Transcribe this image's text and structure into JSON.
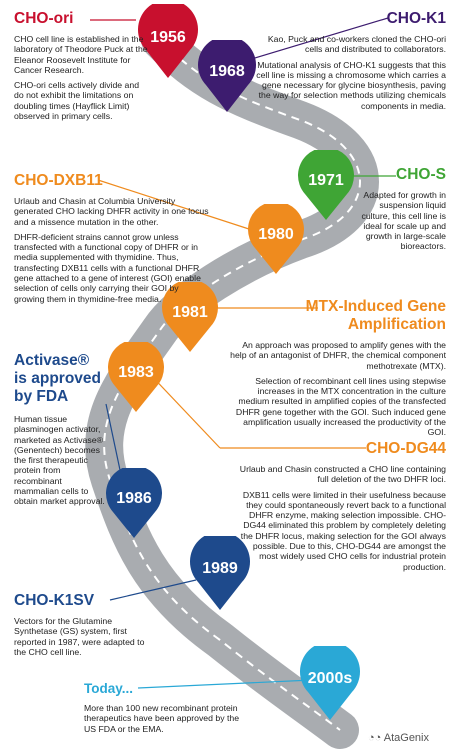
{
  "colors": {
    "red": "#c8102e",
    "purple": "#3d1c6f",
    "green": "#3fa535",
    "orange": "#ef8b1e",
    "navy": "#1e4a8c",
    "light_blue": "#2aa8d6",
    "road": "#a9acb0"
  },
  "milestones": {
    "y1956": "1956",
    "y1968": "1968",
    "y1971": "1971",
    "y1980": "1980",
    "y1981": "1981",
    "y1983": "1983",
    "y1986": "1986",
    "y1989": "1989",
    "y2000s": "2000s"
  },
  "cho_ori": {
    "title": "CHO-ori",
    "p1": "CHO cell line is established in the laboratory of Theodore Puck at the Eleanor Roosevelt Institute for Cancer Research.",
    "p2": "CHO-ori cells actively divide and do not exhibit the limitations on doubling times (Hayflick Limit) observed in primary cells."
  },
  "cho_k1": {
    "title": "CHO-K1",
    "p1": "Kao, Puck and co-workers cloned the CHO-ori cells and distributed to collaborators.",
    "p2": "Mutational analysis of CHO-K1 suggests that this cell line is missing a chromosome which carries a gene necessary for glycine biosynthesis, paving the way for selection methods utilizing chemicals components in media."
  },
  "cho_s": {
    "title": "CHO-S",
    "p1": "Adapted for growth in suspension liquid culture, this cell line is ideal for scale up and growth in large-scale bioreactors."
  },
  "cho_dxb11": {
    "title": "CHO-DXB11",
    "p1": "Urlaub and Chasin at Columbia University generated CHO lacking DHFR activity in one locus and a missence mutation in the other.",
    "p2": "DHFR-deficient strains cannot grow unless transfected with a functional copy of DHFR or in media supplemented with thymidine. Thus, transfecting DXB11 cells with a functional DHFR gene attached to a gene of interest (GOI) enable selection of cells only carrying their GOI by growing them in thymidine-free media."
  },
  "mtx": {
    "title_line1": "MTX-Induced Gene",
    "title_line2": "Amplification",
    "p1": "An approach was proposed to amplify genes with the help of an antagonist of DHFR, the chemical component methotrexate (MTX).",
    "p2": "Selection of recombinant cell lines using stepwise increases in the MTX concentration in the culture medium resulted in amplified copies of the transfected DHFR gene together with the GOI. Such induced gene amplification usually increased the productivity of the GOI."
  },
  "activase": {
    "title_line1": "Activase®",
    "title_line2": "is approved",
    "title_line3": "by FDA",
    "p1": "Human tissue plasminogen activator, marketed as Activase® (Genentech) becomes the first therapeutic protein from recombinant mammalian cells to obtain market approval."
  },
  "cho_dg44": {
    "title": "CHO-DG44",
    "p1": "Urlaub and Chasin constructed a CHO line containing full deletion of the two DHFR loci.",
    "p2": "DXB11 cells were limited in their usefulness because they could spontaneously revert back to a functional DHFR enzyme, making selection impossible. CHO-DG44 eliminated this problem by completely deleting the DHFR locus, making selection for the GOI always possible. Due to this, CHO-DG44 are amongst the most widely used CHO cells for industrial protein production."
  },
  "cho_k1sv": {
    "title": "CHO-K1SV",
    "p1": "Vectors for the Glutamine Synthetase (GS) system, first reported in 1987, were adapted to the CHO cell line."
  },
  "today": {
    "title": "Today...",
    "p1": "More than 100 new recombinant protein therapeutics have been approved by the US FDA or the EMA."
  },
  "watermark": "AtaGenix"
}
